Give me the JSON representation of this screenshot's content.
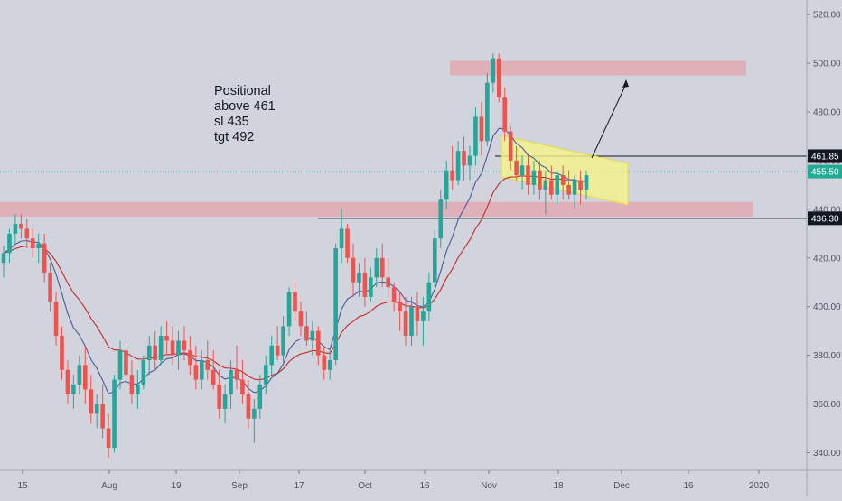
{
  "chart_data": {
    "type": "candlestick",
    "y_axis": {
      "ticks": [
        340,
        360,
        380,
        400,
        420,
        440,
        460,
        480,
        500,
        520
      ],
      "range": [
        322,
        526
      ]
    },
    "x_axis": {
      "ticks": [
        "15",
        "Aug",
        "19",
        "Sep",
        "17",
        "Oct",
        "16",
        "Nov",
        "18",
        "Dec",
        "16",
        "2020"
      ]
    },
    "price_labels": {
      "last": "455.50",
      "resistance": "461.85",
      "support": "436.30"
    },
    "levels": {
      "resistance": 461.85,
      "support": 436.3,
      "last": 455.5
    },
    "zones": [
      {
        "name": "supply-zone",
        "from": 495,
        "to": 501
      },
      {
        "name": "demand-zone",
        "from": 437,
        "to": 443
      }
    ],
    "annotation": [
      "Positional",
      "above 461",
      "sl 435",
      "tgt 492"
    ],
    "candles": [
      [
        418,
        425,
        412,
        422
      ],
      [
        422,
        432,
        418,
        430
      ],
      [
        430,
        438,
        426,
        434
      ],
      [
        434,
        438,
        428,
        432
      ],
      [
        432,
        436,
        424,
        428
      ],
      [
        428,
        432,
        420,
        424
      ],
      [
        424,
        430,
        418,
        426
      ],
      [
        426,
        430,
        410,
        414
      ],
      [
        414,
        418,
        398,
        402
      ],
      [
        402,
        406,
        384,
        388
      ],
      [
        388,
        392,
        370,
        374
      ],
      [
        374,
        378,
        360,
        364
      ],
      [
        364,
        372,
        358,
        368
      ],
      [
        368,
        380,
        364,
        376
      ],
      [
        376,
        384,
        360,
        366
      ],
      [
        366,
        372,
        352,
        356
      ],
      [
        356,
        364,
        350,
        360
      ],
      [
        360,
        368,
        346,
        350
      ],
      [
        350,
        356,
        338,
        342
      ],
      [
        342,
        372,
        340,
        370
      ],
      [
        370,
        386,
        366,
        382
      ],
      [
        382,
        386,
        368,
        372
      ],
      [
        372,
        378,
        360,
        364
      ],
      [
        364,
        374,
        358,
        368
      ],
      [
        368,
        380,
        366,
        378
      ],
      [
        378,
        388,
        372,
        384
      ],
      [
        384,
        390,
        374,
        378
      ],
      [
        378,
        392,
        376,
        388
      ],
      [
        388,
        394,
        380,
        386
      ],
      [
        386,
        392,
        376,
        380
      ],
      [
        380,
        390,
        374,
        386
      ],
      [
        386,
        392,
        378,
        382
      ],
      [
        382,
        388,
        372,
        376
      ],
      [
        376,
        384,
        366,
        370
      ],
      [
        370,
        382,
        366,
        378
      ],
      [
        378,
        386,
        370,
        374
      ],
      [
        374,
        382,
        366,
        368
      ],
      [
        368,
        374,
        354,
        358
      ],
      [
        358,
        368,
        352,
        364
      ],
      [
        364,
        378,
        358,
        374
      ],
      [
        374,
        384,
        366,
        370
      ],
      [
        370,
        378,
        360,
        364
      ],
      [
        364,
        370,
        350,
        354
      ],
      [
        354,
        362,
        344,
        358
      ],
      [
        358,
        372,
        354,
        368
      ],
      [
        368,
        380,
        364,
        376
      ],
      [
        376,
        388,
        372,
        384
      ],
      [
        384,
        392,
        378,
        380
      ],
      [
        380,
        396,
        376,
        392
      ],
      [
        392,
        408,
        388,
        406
      ],
      [
        406,
        410,
        394,
        398
      ],
      [
        398,
        402,
        388,
        392
      ],
      [
        392,
        398,
        384,
        386
      ],
      [
        386,
        394,
        380,
        390
      ],
      [
        390,
        392,
        376,
        380
      ],
      [
        380,
        384,
        370,
        374
      ],
      [
        374,
        382,
        370,
        378
      ],
      [
        378,
        426,
        376,
        424
      ],
      [
        424,
        440,
        418,
        432
      ],
      [
        432,
        434,
        418,
        420
      ],
      [
        420,
        426,
        404,
        410
      ],
      [
        410,
        418,
        404,
        414
      ],
      [
        414,
        420,
        400,
        404
      ],
      [
        404,
        416,
        402,
        412
      ],
      [
        412,
        424,
        408,
        420
      ],
      [
        420,
        426,
        408,
        412
      ],
      [
        412,
        420,
        404,
        408
      ],
      [
        408,
        410,
        398,
        402
      ],
      [
        402,
        406,
        390,
        398
      ],
      [
        398,
        404,
        384,
        388
      ],
      [
        388,
        404,
        384,
        400
      ],
      [
        400,
        406,
        388,
        394
      ],
      [
        394,
        404,
        384,
        398
      ],
      [
        398,
        414,
        394,
        410
      ],
      [
        410,
        432,
        408,
        428
      ],
      [
        428,
        448,
        424,
        444
      ],
      [
        444,
        460,
        440,
        456
      ],
      [
        456,
        466,
        448,
        452
      ],
      [
        452,
        468,
        450,
        464
      ],
      [
        464,
        470,
        452,
        458
      ],
      [
        458,
        466,
        452,
        462
      ],
      [
        462,
        482,
        458,
        478
      ],
      [
        478,
        484,
        462,
        468
      ],
      [
        468,
        496,
        466,
        492
      ],
      [
        492,
        504,
        488,
        502
      ],
      [
        502,
        504,
        484,
        486
      ],
      [
        486,
        490,
        468,
        472
      ],
      [
        472,
        474,
        456,
        460
      ],
      [
        460,
        466,
        452,
        454
      ],
      [
        454,
        462,
        448,
        458
      ],
      [
        458,
        462,
        446,
        450
      ],
      [
        450,
        460,
        446,
        456
      ],
      [
        456,
        460,
        444,
        448
      ],
      [
        448,
        456,
        438,
        452
      ],
      [
        452,
        458,
        444,
        446
      ],
      [
        446,
        456,
        442,
        454
      ],
      [
        454,
        458,
        444,
        450
      ],
      [
        450,
        456,
        444,
        446
      ],
      [
        446,
        454,
        440,
        452
      ],
      [
        452,
        456,
        442,
        448
      ],
      [
        448,
        456,
        444,
        454
      ]
    ]
  }
}
